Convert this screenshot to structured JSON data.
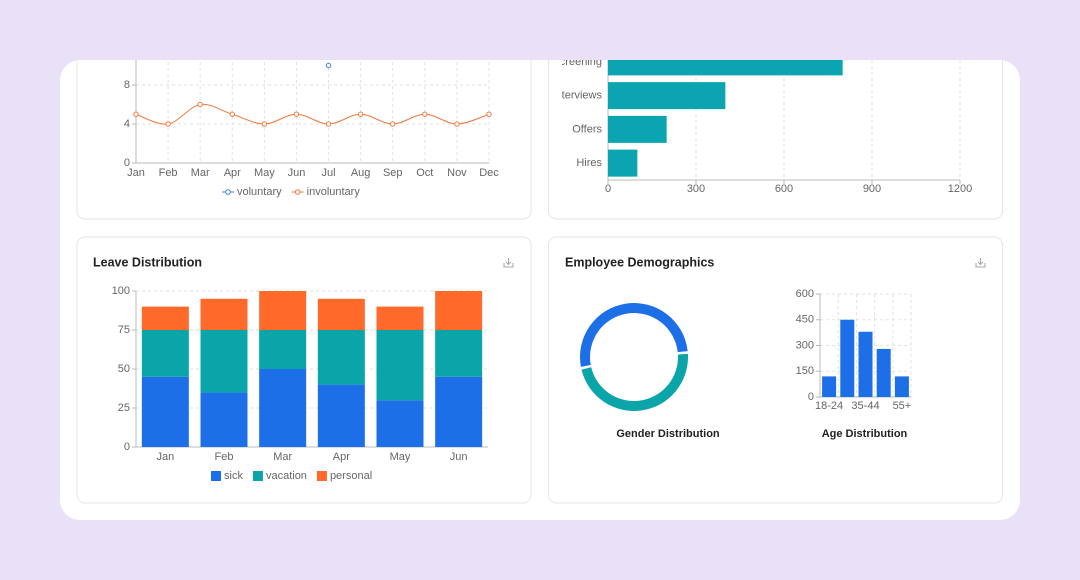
{
  "dashboard": {
    "cards": [
      "Leave Distribution",
      "Employee Demographics"
    ]
  },
  "chart_data": [
    {
      "type": "line",
      "categories": [
        "Jan",
        "Feb",
        "Mar",
        "Apr",
        "May",
        "Jun",
        "Jul",
        "Aug",
        "Sep",
        "Oct",
        "Nov",
        "Dec"
      ],
      "series": [
        {
          "name": "voluntary",
          "color": "#4a80d9",
          "values": [
            null,
            null,
            null,
            null,
            null,
            null,
            10,
            null,
            null,
            null,
            null,
            null
          ]
        },
        {
          "name": "involuntary",
          "color": "#f0793a",
          "values": [
            5,
            4,
            6,
            5,
            4,
            5,
            4,
            5,
            4,
            5,
            4,
            5
          ]
        }
      ],
      "ylim": [
        0,
        12
      ],
      "yticks": [
        0,
        4,
        8
      ],
      "grid": true
    },
    {
      "type": "hbar",
      "categories": [
        "Screening",
        "Interviews",
        "Offers",
        "Hires"
      ],
      "values": [
        800,
        400,
        200,
        100
      ],
      "color": "#0ba5b2",
      "xlim": [
        0,
        1200
      ],
      "xticks": [
        0,
        300,
        600,
        900,
        1200
      ],
      "grid": true
    },
    {
      "type": "stacked-bar",
      "categories": [
        "Jan",
        "Feb",
        "Mar",
        "Apr",
        "May",
        "Jun"
      ],
      "series": [
        {
          "name": "sick",
          "color": "#1c6fe6",
          "values": [
            45,
            35,
            50,
            40,
            30,
            45
          ]
        },
        {
          "name": "vacation",
          "color": "#0aa5a8",
          "values": [
            30,
            40,
            25,
            35,
            45,
            30
          ]
        },
        {
          "name": "personal",
          "color": "#ff6a2b",
          "values": [
            15,
            20,
            25,
            20,
            15,
            25
          ]
        }
      ],
      "ylim": [
        0,
        100
      ],
      "yticks": [
        0,
        25,
        50,
        75,
        100
      ],
      "grid": true
    },
    {
      "type": "donut",
      "title": "Gender Distribution",
      "values": [
        52,
        48
      ],
      "colors": [
        "#1c6fe6",
        "#0aa5a8"
      ]
    },
    {
      "type": "bar",
      "title": "Age Distribution",
      "categories": [
        "18-24",
        null,
        "35-44",
        null,
        "55+"
      ],
      "values": [
        120,
        450,
        380,
        280,
        120
      ],
      "color": "#1c6fe6",
      "ylim": [
        0,
        600
      ],
      "yticks": [
        0,
        150,
        300,
        450,
        600
      ],
      "grid": true
    }
  ]
}
